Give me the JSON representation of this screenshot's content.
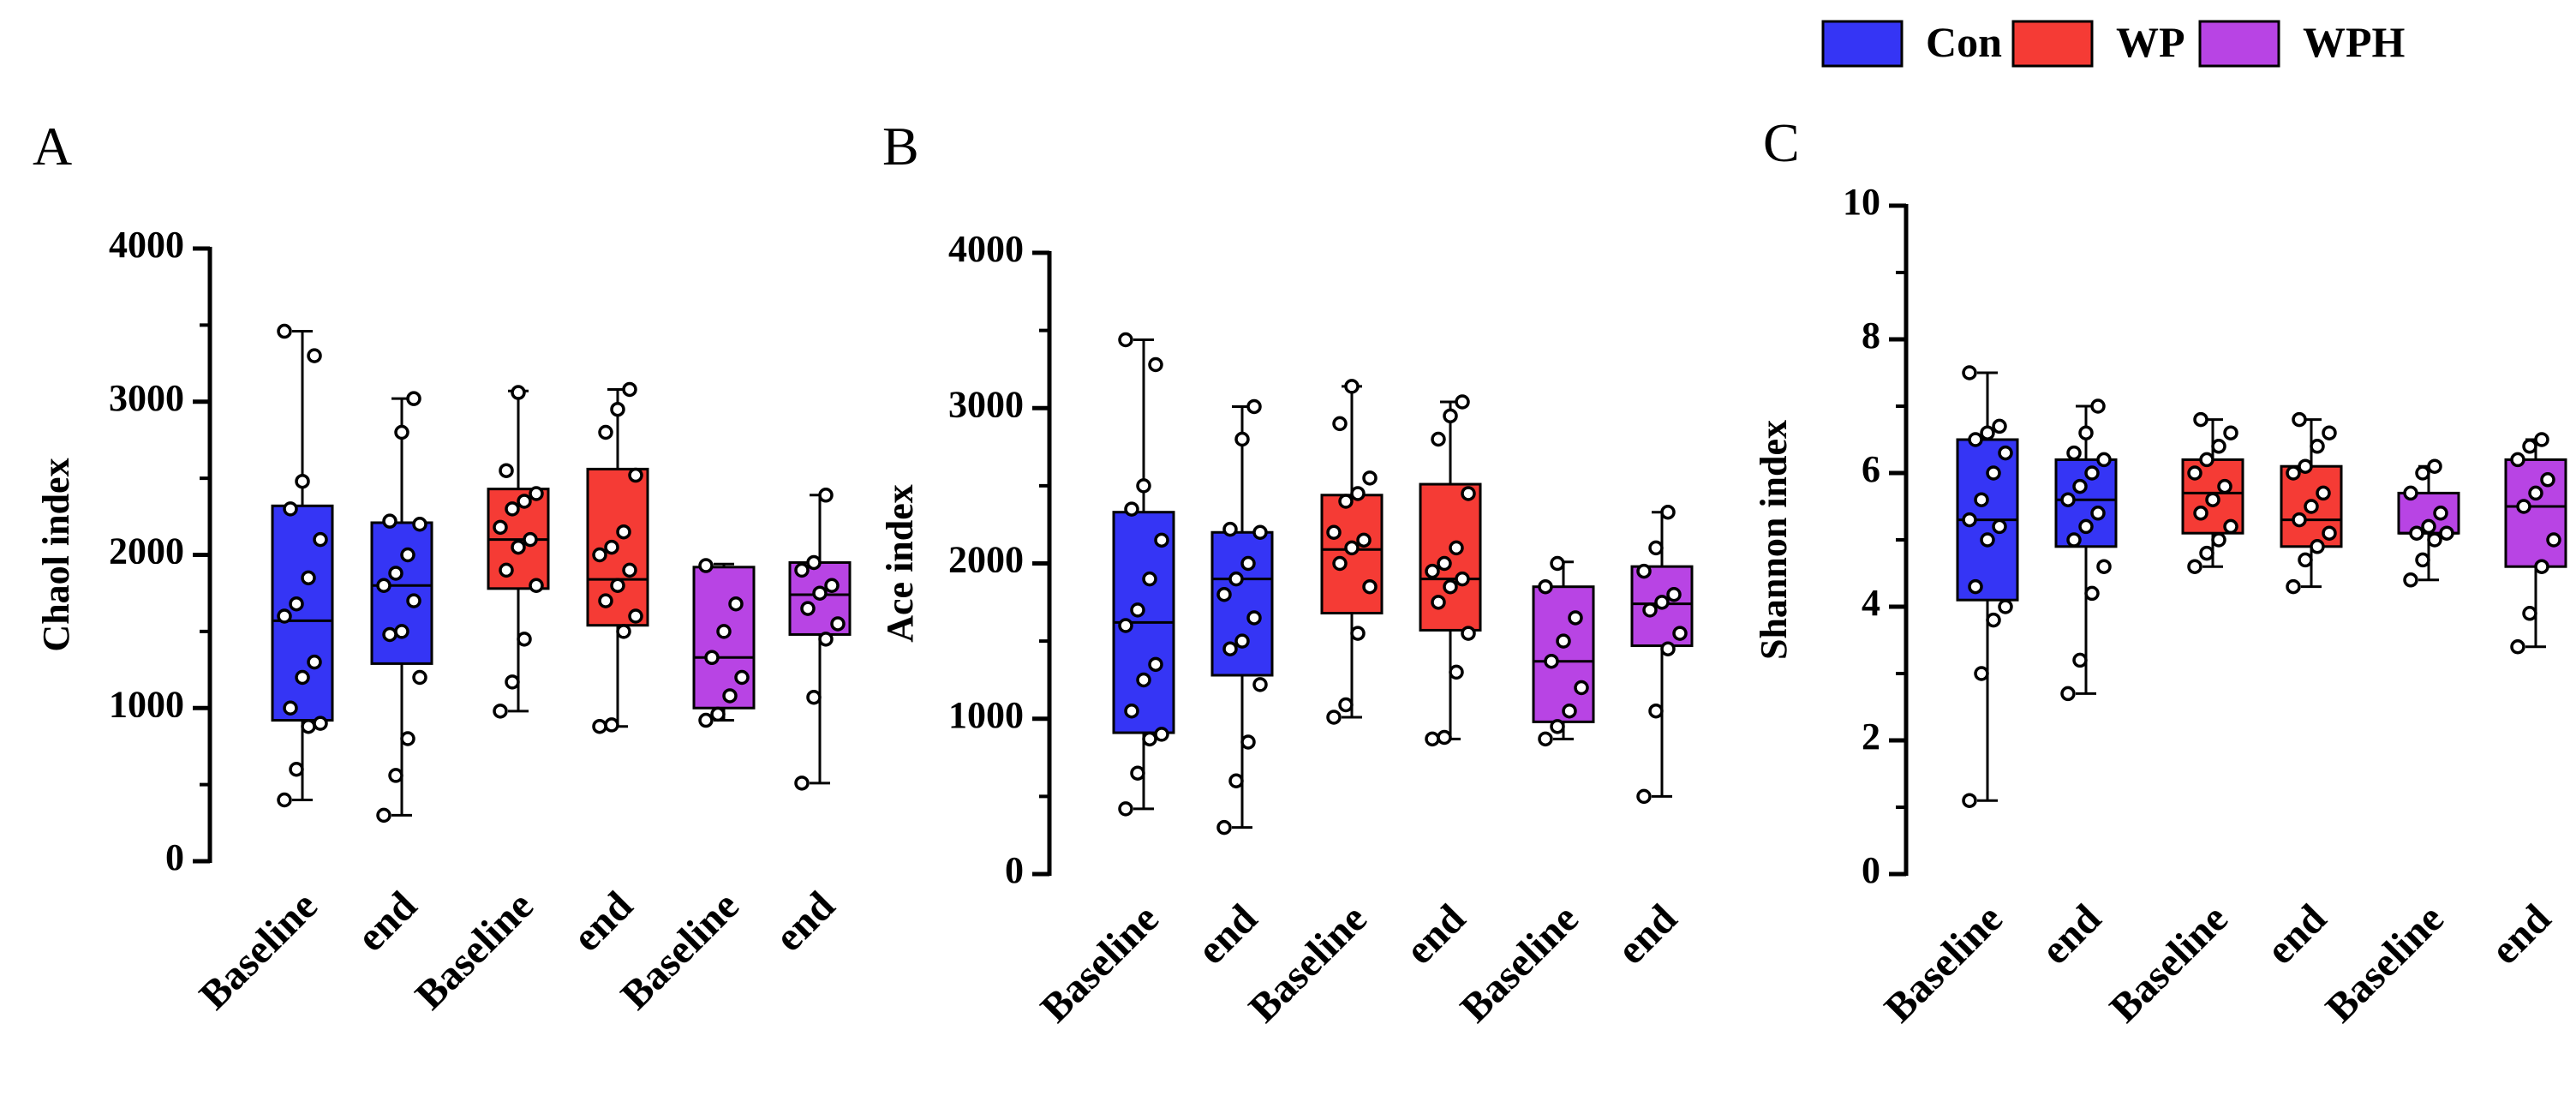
{
  "legend": [
    {
      "label": "Con",
      "color": "#3535f5"
    },
    {
      "label": "WP",
      "color": "#f53b35"
    },
    {
      "label": "WPH",
      "color": "#b844e4"
    }
  ],
  "colors": {
    "Con": "#3535f5",
    "WP": "#f53b35",
    "WPH": "#b844e4",
    "axis": "#000000"
  },
  "chart_data": [
    {
      "type": "boxplot",
      "panel": "A",
      "ylabel": "Chaol index",
      "ylim": [
        0,
        4000
      ],
      "yticks": [
        0,
        1000,
        2000,
        3000,
        4000
      ],
      "categories": [
        "Baseline",
        "end",
        "Baseline",
        "end",
        "Baseline",
        "end"
      ],
      "groups": [
        {
          "group": "Con",
          "label": "Baseline",
          "min": 400,
          "q1": 920,
          "median": 1570,
          "q3": 2320,
          "max": 3460,
          "points": [
            400,
            600,
            880,
            900,
            1000,
            1200,
            1300,
            1600,
            1680,
            1850,
            2100,
            2300,
            2480,
            3300,
            3460
          ]
        },
        {
          "group": "Con",
          "label": "end",
          "min": 300,
          "q1": 1290,
          "median": 1800,
          "q3": 2210,
          "max": 3020,
          "points": [
            300,
            560,
            800,
            1200,
            1480,
            1500,
            1700,
            1800,
            1880,
            2000,
            2200,
            2220,
            2800,
            3020
          ]
        },
        {
          "group": "WP",
          "label": "Baseline",
          "min": 980,
          "q1": 1780,
          "median": 2100,
          "q3": 2430,
          "max": 3070,
          "points": [
            980,
            1170,
            1450,
            1800,
            1900,
            2050,
            2100,
            2180,
            2300,
            2350,
            2400,
            2550,
            3060
          ]
        },
        {
          "group": "WP",
          "label": "end",
          "min": 880,
          "q1": 1540,
          "median": 1840,
          "q3": 2560,
          "max": 3080,
          "points": [
            880,
            890,
            1500,
            1600,
            1700,
            1800,
            1900,
            2000,
            2050,
            2150,
            2520,
            2800,
            2950,
            3080
          ]
        },
        {
          "group": "WPH",
          "label": "Baseline",
          "min": 920,
          "q1": 1000,
          "median": 1330,
          "q3": 1920,
          "max": 1940,
          "points": [
            920,
            960,
            1080,
            1200,
            1330,
            1500,
            1680,
            1930
          ]
        },
        {
          "group": "WPH",
          "label": "end",
          "min": 510,
          "q1": 1480,
          "median": 1740,
          "q3": 1950,
          "max": 2390,
          "points": [
            510,
            1070,
            1450,
            1550,
            1650,
            1750,
            1800,
            1900,
            1950,
            2390
          ]
        }
      ]
    },
    {
      "type": "boxplot",
      "panel": "B",
      "ylabel": "Ace index",
      "ylim": [
        0,
        4000
      ],
      "yticks": [
        0,
        1000,
        2000,
        3000,
        4000
      ],
      "categories": [
        "Baseline",
        "end",
        "Baseline",
        "end",
        "Baseline",
        "end"
      ],
      "groups": [
        {
          "group": "Con",
          "label": "Baseline",
          "min": 420,
          "q1": 910,
          "median": 1620,
          "q3": 2330,
          "max": 3440,
          "points": [
            420,
            650,
            870,
            900,
            1050,
            1250,
            1350,
            1600,
            1700,
            1900,
            2150,
            2350,
            2500,
            3280,
            3440
          ]
        },
        {
          "group": "Con",
          "label": "end",
          "min": 300,
          "q1": 1280,
          "median": 1900,
          "q3": 2200,
          "max": 3010,
          "points": [
            300,
            600,
            850,
            1220,
            1450,
            1500,
            1650,
            1800,
            1900,
            2000,
            2200,
            2220,
            2800,
            3010
          ]
        },
        {
          "group": "WP",
          "label": "Baseline",
          "min": 1010,
          "q1": 1680,
          "median": 2090,
          "q3": 2440,
          "max": 3140,
          "points": [
            1010,
            1090,
            1550,
            1850,
            2000,
            2100,
            2150,
            2200,
            2400,
            2450,
            2550,
            2900,
            3140
          ]
        },
        {
          "group": "WP",
          "label": "end",
          "min": 870,
          "q1": 1570,
          "median": 1900,
          "q3": 2510,
          "max": 3040,
          "points": [
            870,
            880,
            1300,
            1550,
            1750,
            1850,
            1900,
            1950,
            2000,
            2100,
            2450,
            2800,
            2950,
            3040
          ]
        },
        {
          "group": "WPH",
          "label": "Baseline",
          "min": 870,
          "q1": 980,
          "median": 1370,
          "q3": 1850,
          "max": 2010,
          "points": [
            870,
            950,
            1050,
            1200,
            1370,
            1500,
            1650,
            1850,
            2000
          ]
        },
        {
          "group": "WPH",
          "label": "end",
          "min": 500,
          "q1": 1470,
          "median": 1740,
          "q3": 1980,
          "max": 2330,
          "points": [
            500,
            1050,
            1450,
            1550,
            1700,
            1750,
            1800,
            1950,
            2100,
            2330
          ]
        }
      ]
    },
    {
      "type": "boxplot",
      "panel": "C",
      "ylabel": "Shannon index",
      "ylim": [
        0,
        10
      ],
      "yticks": [
        0,
        2,
        4,
        6,
        8,
        10
      ],
      "categories": [
        "Baseline",
        "end",
        "Baseline",
        "end",
        "Baseline",
        "end"
      ],
      "groups": [
        {
          "group": "Con",
          "label": "Baseline",
          "min": 1.1,
          "q1": 4.1,
          "median": 5.3,
          "q3": 6.5,
          "max": 7.5,
          "points": [
            1.1,
            3.0,
            3.8,
            4.0,
            4.3,
            5.0,
            5.2,
            5.3,
            5.6,
            6.0,
            6.3,
            6.5,
            6.6,
            6.7,
            7.5
          ]
        },
        {
          "group": "Con",
          "label": "end",
          "min": 2.7,
          "q1": 4.9,
          "median": 5.6,
          "q3": 6.2,
          "max": 7.0,
          "points": [
            2.7,
            3.2,
            4.2,
            4.6,
            5.0,
            5.2,
            5.4,
            5.6,
            5.8,
            6.0,
            6.2,
            6.3,
            6.6,
            7.0
          ]
        },
        {
          "group": "WP",
          "label": "Baseline",
          "min": 4.6,
          "q1": 5.1,
          "median": 5.7,
          "q3": 6.2,
          "max": 6.8,
          "points": [
            4.6,
            4.8,
            5.0,
            5.2,
            5.4,
            5.6,
            5.8,
            6.0,
            6.2,
            6.4,
            6.6,
            6.8
          ]
        },
        {
          "group": "WP",
          "label": "end",
          "min": 4.3,
          "q1": 4.9,
          "median": 5.3,
          "q3": 6.1,
          "max": 6.8,
          "points": [
            4.3,
            4.7,
            4.9,
            5.1,
            5.3,
            5.5,
            5.7,
            6.0,
            6.1,
            6.4,
            6.6,
            6.8
          ]
        },
        {
          "group": "WPH",
          "label": "Baseline",
          "min": 4.4,
          "q1": 5.1,
          "median": 5.1,
          "q3": 5.7,
          "max": 6.1,
          "points": [
            4.4,
            4.7,
            5.0,
            5.1,
            5.1,
            5.2,
            5.4,
            5.7,
            6.0,
            6.1
          ]
        },
        {
          "group": "WPH",
          "label": "end",
          "min": 3.4,
          "q1": 4.6,
          "median": 5.5,
          "q3": 6.2,
          "max": 6.5,
          "points": [
            3.4,
            3.9,
            4.6,
            5.0,
            5.5,
            5.7,
            5.9,
            6.2,
            6.4,
            6.5
          ]
        }
      ]
    }
  ]
}
